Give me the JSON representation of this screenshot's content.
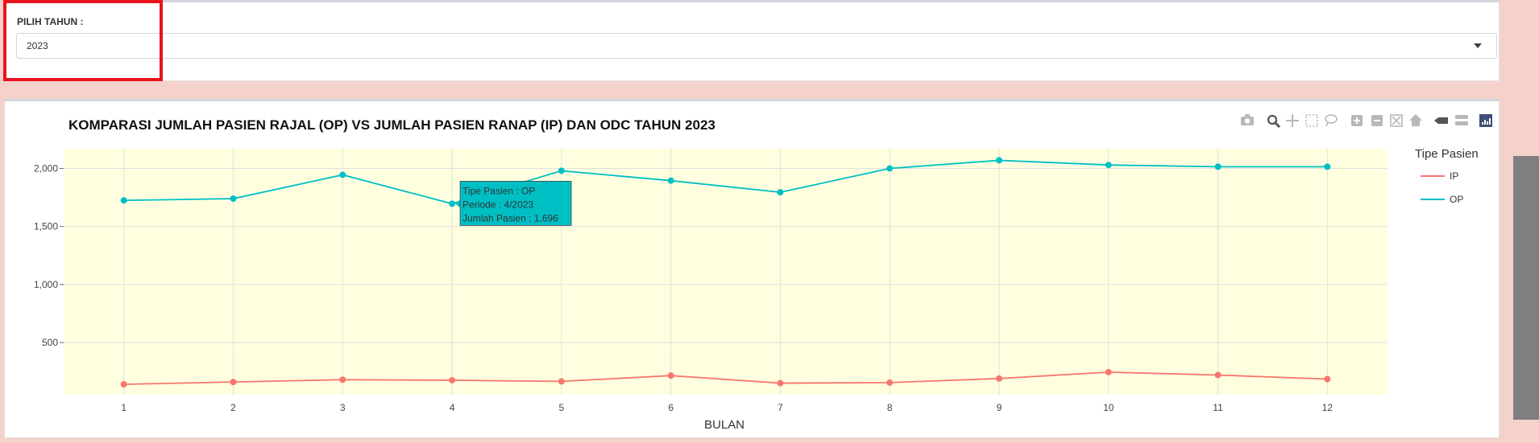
{
  "year_filter": {
    "label": "PILIH TAHUN :",
    "selected": "2023"
  },
  "toolbar": {
    "icons": [
      "camera-icon",
      "zoom-icon",
      "pan-icon",
      "box-select-icon",
      "lasso-select-icon",
      "zoom-in-icon",
      "zoom-out-icon",
      "autoscale-icon",
      "reset-axes-icon",
      "hover-closest-icon",
      "hover-compare-icon",
      "plotly-logo-icon"
    ]
  },
  "tooltip": {
    "line1": "Tipe Pasien : OP",
    "line2": "Periode : 4/2023",
    "line3": "Jumlah Pasien : 1,696"
  },
  "chart_data": {
    "type": "line",
    "title": "KOMPARASI JUMLAH PASIEN RAJAL (OP) VS JUMLAH PASIEN RANAP (IP) DAN ODC TAHUN 2023",
    "xlabel": "BULAN",
    "ylabel": "",
    "x": [
      1,
      2,
      3,
      4,
      5,
      6,
      7,
      8,
      9,
      10,
      11,
      12
    ],
    "x_ticks": [
      "1",
      "2",
      "3",
      "4",
      "5",
      "6",
      "7",
      "8",
      "9",
      "10",
      "11",
      "12"
    ],
    "y_ticks": [
      500,
      1000,
      1500,
      2000
    ],
    "y_tick_labels": [
      "500",
      "1,000",
      "1,500",
      "2,000"
    ],
    "ylim": [
      50,
      2170
    ],
    "xlim": [
      0.45,
      12.55
    ],
    "grid": true,
    "plot_background": "#ffffe0",
    "legend": {
      "title": "Tipe Pasien",
      "position": "top-right"
    },
    "series": [
      {
        "name": "IP",
        "color": "#f8766d",
        "values": [
          140,
          160,
          180,
          175,
          165,
          215,
          150,
          155,
          190,
          245,
          220,
          185
        ]
      },
      {
        "name": "OP",
        "color": "#00bfc4",
        "values": [
          1725,
          1740,
          1945,
          1696,
          1980,
          1895,
          1795,
          2000,
          2070,
          2030,
          2015,
          2015
        ]
      }
    ]
  }
}
